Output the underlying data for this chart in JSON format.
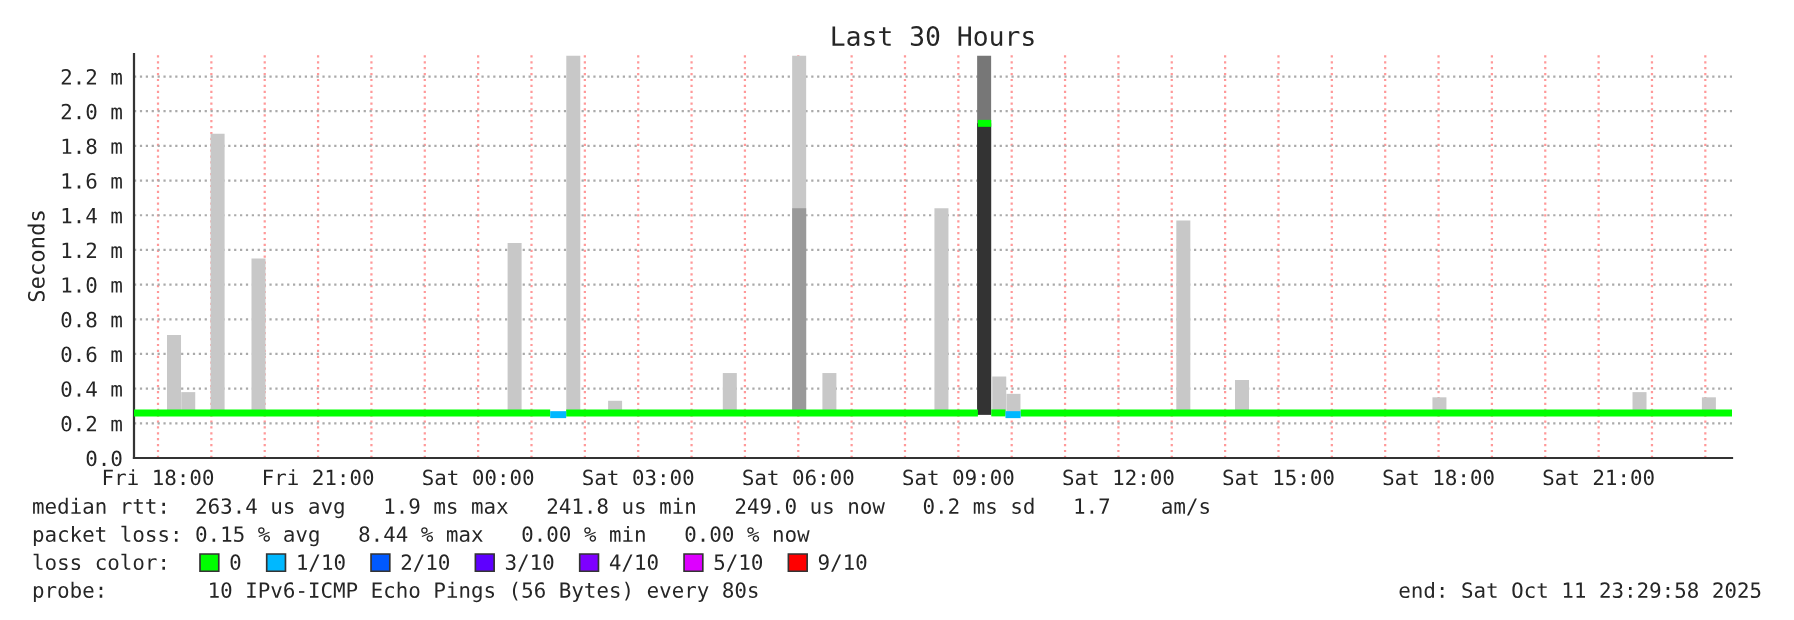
{
  "chart_data": {
    "type": "bar",
    "title": "Last 30 Hours",
    "ylabel": "Seconds",
    "legend_title": "loss color:",
    "xlim": [
      "2025-10-10T17:33",
      "2025-10-11T23:30"
    ],
    "xticks": [
      {
        "value": "2025-10-10T18:00",
        "label": "Fri 18:00"
      },
      {
        "value": "2025-10-10T19:00",
        "label": null
      },
      {
        "value": "2025-10-10T20:00",
        "label": null
      },
      {
        "value": "2025-10-10T21:00",
        "label": "Fri 21:00"
      },
      {
        "value": "2025-10-10T22:00",
        "label": null
      },
      {
        "value": "2025-10-10T23:00",
        "label": null
      },
      {
        "value": "2025-10-11T00:00",
        "label": "Sat 00:00"
      },
      {
        "value": "2025-10-11T01:00",
        "label": null
      },
      {
        "value": "2025-10-11T02:00",
        "label": null
      },
      {
        "value": "2025-10-11T03:00",
        "label": "Sat 03:00"
      },
      {
        "value": "2025-10-11T04:00",
        "label": null
      },
      {
        "value": "2025-10-11T05:00",
        "label": null
      },
      {
        "value": "2025-10-11T06:00",
        "label": "Sat 06:00"
      },
      {
        "value": "2025-10-11T07:00",
        "label": null
      },
      {
        "value": "2025-10-11T08:00",
        "label": null
      },
      {
        "value": "2025-10-11T09:00",
        "label": "Sat 09:00"
      },
      {
        "value": "2025-10-11T10:00",
        "label": null
      },
      {
        "value": "2025-10-11T11:00",
        "label": null
      },
      {
        "value": "2025-10-11T12:00",
        "label": "Sat 12:00"
      },
      {
        "value": "2025-10-11T13:00",
        "label": null
      },
      {
        "value": "2025-10-11T14:00",
        "label": null
      },
      {
        "value": "2025-10-11T15:00",
        "label": "Sat 15:00"
      },
      {
        "value": "2025-10-11T16:00",
        "label": null
      },
      {
        "value": "2025-10-11T17:00",
        "label": null
      },
      {
        "value": "2025-10-11T18:00",
        "label": "Sat 18:00"
      },
      {
        "value": "2025-10-11T19:00",
        "label": null
      },
      {
        "value": "2025-10-11T20:00",
        "label": null
      },
      {
        "value": "2025-10-11T21:00",
        "label": "Sat 21:00"
      },
      {
        "value": "2025-10-11T22:00",
        "label": null
      },
      {
        "value": "2025-10-11T23:00",
        "label": null
      }
    ],
    "ylim": [
      0,
      2.33
    ],
    "yticks": [
      {
        "value": 0,
        "label": "0.0"
      },
      {
        "value": 0.2,
        "label": "0.2 m"
      },
      {
        "value": 0.4,
        "label": "0.4 m"
      },
      {
        "value": 0.6,
        "label": "0.6 m"
      },
      {
        "value": 0.8,
        "label": "0.8 m"
      },
      {
        "value": 1.0,
        "label": "1.0 m"
      },
      {
        "value": 1.2,
        "label": "1.2 m"
      },
      {
        "value": 1.4,
        "label": "1.4 m"
      },
      {
        "value": 1.6,
        "label": "1.6 m"
      },
      {
        "value": 1.8,
        "label": "1.8 m"
      },
      {
        "value": 2.0,
        "label": "2.0 m"
      },
      {
        "value": 2.2,
        "label": "2.2 m"
      }
    ],
    "grid": true,
    "legend": "bottom",
    "series": [
      {
        "x": [
          "2025-10-10T18:18",
          "2025-10-10T18:34",
          "2025-10-10T19:07",
          "2025-10-10T19:53",
          "2025-10-11T00:41",
          "2025-10-11T01:47",
          "2025-10-11T02:34",
          "2025-10-11T04:43",
          "2025-10-11T06:01",
          "2025-10-11T06:35",
          "2025-10-11T08:41",
          "2025-10-11T09:29",
          "2025-10-11T09:46",
          "2025-10-11T10:02",
          "2025-10-11T13:13",
          "2025-10-11T14:19",
          "2025-10-11T18:01",
          "2025-10-11T21:46",
          "2025-10-11T23:04"
        ],
        "base": [
          0.25,
          0.25,
          0.25,
          0.25,
          0.25,
          0.25,
          0.25,
          0.25,
          0.25,
          0.25,
          0.25,
          0.25,
          0.25,
          0.25,
          0.25,
          0.25,
          0.25,
          0.25,
          0.25
        ],
        "values": [
          0.46,
          0.13,
          1.62,
          0.9,
          0.99,
          2.07,
          0.08,
          0.24,
          2.07,
          0.24,
          1.19,
          2.07,
          0.22,
          0.12,
          1.12,
          0.2,
          0.1,
          0.13,
          0.1
        ],
        "colors": [
          "#c8c8c8",
          "#c8c8c8",
          "#c8c8c8",
          "#c8c8c8",
          "#c8c8c8",
          "#c8c8c8",
          "#c8c8c8",
          "#c8c8c8",
          "#c8c8c8",
          "#c8c8c8",
          "#c8c8c8",
          "#777777",
          "#c8c8c8",
          "#c8c8c8",
          "#c8c8c8",
          "#c8c8c8",
          "#c8c8c8",
          "#c8c8c8",
          "#c8c8c8"
        ]
      },
      {
        "x": [
          "2025-10-11T06:01",
          "2025-10-11T09:29"
        ],
        "base": [
          0.25,
          0.25
        ],
        "values": [
          1.19,
          1.68
        ],
        "colors": [
          "#999999",
          "#333333"
        ]
      },
      {
        "type": "line",
        "name": "0",
        "color": "#00ff00",
        "x": [
          "2025-10-10T17:33",
          "2025-10-11T01:21"
        ],
        "values": [
          0.26,
          0.26
        ]
      },
      {
        "type": "line",
        "color": "#00ff00",
        "x": [
          "2025-10-11T01:39",
          "2025-10-11T09:22"
        ],
        "values": [
          0.26,
          0.26
        ]
      },
      {
        "type": "line",
        "color": "#00ff00",
        "x": [
          "2025-10-11T09:22",
          "2025-10-11T09:37"
        ],
        "values": [
          1.93,
          1.93
        ]
      },
      {
        "type": "line",
        "color": "#00ff00",
        "x": [
          "2025-10-11T09:37",
          "2025-10-11T09:53"
        ],
        "values": [
          0.26,
          0.26
        ]
      },
      {
        "type": "line",
        "color": "#00ff00",
        "x": [
          "2025-10-11T10:10",
          "2025-10-11T23:30"
        ],
        "values": [
          0.26,
          0.26
        ]
      },
      {
        "type": "line",
        "name": "1/10",
        "color": "#00b8ff",
        "x": [
          "2025-10-11T01:21",
          "2025-10-11T01:39"
        ],
        "values": [
          0.25,
          0.25
        ]
      },
      {
        "type": "line",
        "color": "#00b8ff",
        "x": [
          "2025-10-11T09:53",
          "2025-10-11T10:10"
        ],
        "values": [
          0.25,
          0.25
        ]
      },
      {
        "type": "step",
        "name": "2/10",
        "color": "#0059ff"
      },
      {
        "type": "step",
        "name": "3/10",
        "color": "#5e00ff"
      },
      {
        "type": "step",
        "name": "4/10",
        "color": "#7e00ff"
      },
      {
        "type": "step",
        "name": "5/10",
        "color": "#dd00ff"
      },
      {
        "type": "step",
        "name": "9/10",
        "color": "#ff0000"
      }
    ],
    "annotations": [
      "median rtt:  263.4 us avg   1.9 ms max   241.8 us min   249.0 us now   0.2 ms sd   1.7    am/s",
      "packet loss: 0.15 % avg   8.44 % max   0.00 % min   0.00 % now",
      "probe:        10 IPv6-ICMP Echo Pings (56 Bytes) every 80s",
      "end: Sat Oct 11 23:29:58 2025"
    ]
  }
}
